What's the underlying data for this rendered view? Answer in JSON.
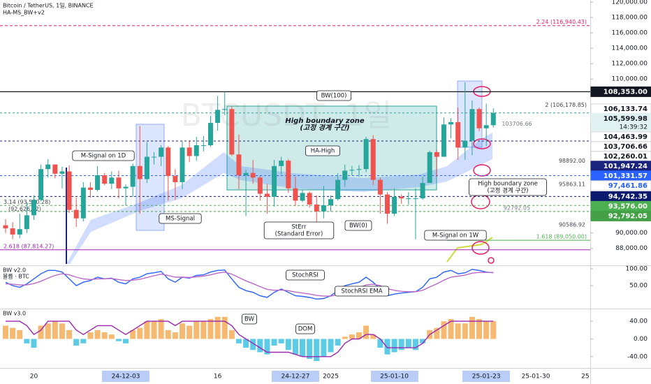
{
  "chart_data": [
    {
      "type": "candlestick",
      "title": "Bitcoin / TetherUS, 1일, BINANCE",
      "subtitle": "HA-MS_BW+v2",
      "watermark": "BTCUSDT, 1일",
      "categories": [
        null,
        null,
        null,
        null,
        "20",
        null,
        null,
        null,
        null,
        null,
        null,
        null,
        null,
        null,
        null,
        null,
        null,
        "24-12-03",
        null,
        null,
        null,
        null,
        null,
        null,
        null,
        null,
        null,
        null,
        null,
        null,
        "16",
        null,
        null,
        null,
        null,
        null,
        null,
        null,
        null,
        null,
        null,
        "24-12-27",
        null,
        null,
        null,
        null,
        "2025",
        null,
        null,
        null,
        null,
        null,
        null,
        null,
        null,
        "25-01-10",
        null,
        null,
        null,
        null,
        null,
        null,
        null,
        null,
        null,
        null,
        null,
        null,
        "25-01-23",
        null,
        null,
        null,
        null,
        null,
        null,
        "25-01-30",
        null,
        null,
        null,
        null,
        null,
        null,
        "25"
      ],
      "open": [
        91000,
        90600,
        89800,
        90500,
        92300,
        94300,
        98300,
        98900,
        97700,
        98000,
        93000,
        91900,
        95900,
        95600,
        97500,
        96400,
        97200,
        95800,
        96000,
        98700,
        97000,
        99900,
        99900,
        101100,
        97400,
        96600,
        101100,
        100000,
        101400,
        101400,
        104300,
        106000,
        106100,
        100200,
        97500,
        97800,
        97200,
        95100,
        94700,
        98700,
        99400,
        95800,
        94200,
        95200,
        93700,
        92800,
        93600,
        94400,
        96900,
        98100,
        98200,
        98300,
        102200,
        96900,
        95000,
        92500,
        94700,
        94500,
        94500,
        94500,
        96500,
        100500,
        99900,
        104100,
        104400,
        101100,
        102000,
        106100,
        103600,
        104000,
        null,
        null,
        null,
        null,
        null,
        null,
        null,
        null,
        null,
        null,
        null,
        null,
        null
      ],
      "high": [
        91800,
        91400,
        92500,
        94000,
        94900,
        98900,
        99600,
        98700,
        98600,
        98800,
        94600,
        96600,
        96600,
        98700,
        97800,
        98000,
        98100,
        96300,
        99000,
        103900,
        101800,
        100500,
        101400,
        101300,
        98300,
        101900,
        101900,
        102500,
        102600,
        105200,
        107800,
        108353,
        106500,
        102800,
        98200,
        99500,
        97400,
        96400,
        99500,
        99900,
        99600,
        97300,
        95600,
        95400,
        94900,
        96100,
        94900,
        97800,
        98900,
        98700,
        98800,
        102500,
        102700,
        97200,
        95300,
        95800,
        95000,
        95300,
        95800,
        97300,
        100700,
        100800,
        105000,
        104900,
        106300,
        109600,
        107200,
        106300,
        106800,
        106200,
        null,
        null,
        null,
        null,
        null,
        null,
        null,
        null,
        null,
        null,
        null,
        null,
        null
      ],
      "low": [
        90000,
        89200,
        89300,
        90000,
        91700,
        94100,
        97200,
        97100,
        95800,
        92600,
        90800,
        91500,
        94600,
        95400,
        96200,
        95700,
        94500,
        93600,
        94700,
        92500,
        96500,
        98900,
        98700,
        94200,
        94300,
        95700,
        99200,
        99400,
        100600,
        101200,
        103300,
        105300,
        100000,
        95700,
        92200,
        96400,
        94200,
        92500,
        93400,
        97600,
        95200,
        93500,
        94000,
        93300,
        91300,
        91900,
        92800,
        94200,
        96000,
        97500,
        97300,
        97900,
        96200,
        92500,
        91200,
        92200,
        93800,
        93700,
        89200,
        94300,
        96500,
        97300,
        99900,
        102300,
        99500,
        99500,
        100100,
        103200,
        101300,
        103700,
        null,
        null,
        null,
        null,
        null,
        null,
        null,
        null,
        null,
        null,
        null,
        null,
        null
      ],
      "close": [
        90600,
        89800,
        90500,
        92300,
        94300,
        98300,
        98900,
        97700,
        98000,
        93000,
        91900,
        95900,
        95600,
        97500,
        96400,
        97200,
        95800,
        96000,
        98700,
        97000,
        99900,
        99900,
        101100,
        97400,
        96600,
        101100,
        100000,
        101400,
        101400,
        104300,
        106000,
        106100,
        100200,
        97500,
        97800,
        97200,
        95100,
        94700,
        98700,
        99400,
        95800,
        94200,
        95200,
        93700,
        92800,
        93600,
        94400,
        96900,
        98100,
        98200,
        98300,
        102200,
        96900,
        95000,
        92500,
        94700,
        94500,
        94500,
        94500,
        96500,
        100500,
        99900,
        104100,
        104400,
        101100,
        102000,
        106100,
        103600,
        104000,
        105599.98,
        null,
        null,
        null,
        null,
        null,
        null,
        null,
        null,
        null,
        null,
        null,
        null,
        null
      ],
      "up_color": "#26a69a",
      "down_color": "#ef5350",
      "ylim": [
        85800,
        120270
      ],
      "yticks": [
        {
          "value": 120000,
          "label": "120,000.00"
        },
        {
          "value": 118000,
          "label": "118,000.00"
        },
        {
          "value": 116000,
          "label": "116,000.00"
        },
        {
          "value": 114000,
          "label": "114,000.00"
        },
        {
          "value": 112000,
          "label": "112,000.00"
        },
        {
          "value": 110000,
          "label": "110,000.00"
        },
        {
          "value": 98000,
          "label": "98,000.00"
        },
        {
          "value": 96000,
          "label": "96,000.00"
        },
        {
          "value": 90000,
          "label": "90,000.00"
        },
        {
          "value": 88000,
          "label": "88,000.00"
        }
      ],
      "price_labels": [
        {
          "value": 108353,
          "label": "108,353.00",
          "bg": "#131722",
          "fg": "#ffffff",
          "line": "#131722"
        },
        {
          "value": 106133.74,
          "label": "106,133.74",
          "bg": "#ffffff",
          "fg": "#131722"
        },
        {
          "value": 105599.98,
          "label": "105,599.98",
          "sublabel": "14:39:32",
          "bg": "#e0f2f1",
          "fg": "#131722",
          "line": "#26a69a"
        },
        {
          "value": 104463.99,
          "label": "104,463.99",
          "bg": "#ffffff",
          "fg": "#131722"
        },
        {
          "value": 103706.66,
          "label": "103,706.66",
          "bg": "#ffffff",
          "fg": "#131722"
        },
        {
          "value": 102260.01,
          "label": "102,260.01",
          "bg": "#ffffff",
          "fg": "#131722"
        },
        {
          "value": 101947.24,
          "label": "101,947.24",
          "bg": "#1a237e",
          "fg": "#ffffff",
          "line": "#1a237e"
        },
        {
          "value": 101331.57,
          "label": "101,331.57",
          "bg": "#2962ff",
          "fg": "#ffffff"
        },
        {
          "value": 97461.86,
          "label": "97,461.86",
          "bg": "#ffffff",
          "fg": "#2962ff",
          "line": "#2962ff"
        },
        {
          "value": 94742.35,
          "label": "94,742.35",
          "bg": "#0d1b6e",
          "fg": "#ffffff",
          "line": "#0d1b6e"
        },
        {
          "value": 93576,
          "label": "93,576.00",
          "bg": "#4caf50",
          "fg": "#ffffff",
          "line": "#4caf50"
        },
        {
          "value": 92792.05,
          "label": "92,792.05",
          "bg": "#43a047",
          "fg": "#ffffff",
          "line": "#43a047"
        }
      ],
      "levels": [
        {
          "value": 116940.43,
          "label": "2.24 (116,940.43)",
          "color": "#e91e63"
        },
        {
          "value": 106178.85,
          "label": "2 (106,178.85)",
          "color": "#434651"
        },
        {
          "value": 103706.66,
          "label": "103706.66",
          "color": "#787b86"
        },
        {
          "value": 98892,
          "label": "98892.00",
          "color": "#434651"
        },
        {
          "value": 95863.11,
          "label": "95863.11",
          "color": "#434651"
        },
        {
          "value": 92792.05,
          "label": "92792.05",
          "color": "#787b86"
        },
        {
          "value": 90586.92,
          "label": "90586.92",
          "color": "#434651"
        },
        {
          "value": 89050,
          "label": "1.618 (89,050.00)",
          "color": "#4caf50"
        },
        {
          "value": 87814.27,
          "label": "2.618 (87,814.27)",
          "color": "#9c27b0"
        },
        {
          "value": 93570.28,
          "label": "3.14 (93,570.28)",
          "color": "#434651"
        },
        {
          "value": 92626.52,
          "label": "(92,626.52)",
          "color": "#434651"
        }
      ],
      "annotations": [
        {
          "lines": [
            "BW(100)"
          ]
        },
        {
          "lines": [
            "High boundary zone",
            "(고정 경계 구간)"
          ]
        },
        {
          "lines": [
            "HA-High"
          ]
        },
        {
          "lines": [
            "M-Signal on 1D"
          ]
        },
        {
          "lines": [
            "MS-Signal"
          ]
        },
        {
          "lines": [
            "StErr",
            "(Standard Error)"
          ]
        },
        {
          "lines": [
            "BW(0)"
          ]
        },
        {
          "lines": [
            "M-Signal on 1W"
          ]
        },
        {
          "lines": [
            "High boundary zone",
            "(고정 경계 구간)"
          ]
        }
      ]
    },
    {
      "type": "line",
      "title": "BW v2.0",
      "subtitle": "볼륨 · BTC",
      "ylim": [
        -16,
        108
      ],
      "yticks": [
        {
          "value": 100,
          "label": "100.00"
        },
        {
          "value": 50,
          "label": "50.00"
        }
      ],
      "series": [
        {
          "color": "#2962ff",
          "values": [
            60,
            50,
            45,
            55,
            70,
            85,
            95,
            95,
            90,
            70,
            50,
            60,
            65,
            75,
            70,
            72,
            60,
            55,
            70,
            75,
            85,
            88,
            92,
            70,
            60,
            75,
            72,
            80,
            82,
            90,
            95,
            96,
            70,
            45,
            35,
            30,
            20,
            15,
            30,
            40,
            30,
            20,
            18,
            15,
            10,
            12,
            20,
            35,
            50,
            55,
            60,
            75,
            60,
            40,
            20,
            25,
            28,
            30,
            32,
            45,
            70,
            75,
            90,
            95,
            85,
            88,
            98,
            95,
            90,
            88,
            null,
            null,
            null,
            null,
            null,
            null,
            null,
            null,
            null,
            null,
            null,
            null,
            null
          ]
        },
        {
          "color": "#ba68c8",
          "values": [
            55,
            54,
            52,
            52,
            56,
            63,
            72,
            80,
            85,
            82,
            75,
            70,
            68,
            70,
            70,
            71,
            68,
            65,
            66,
            69,
            74,
            79,
            84,
            80,
            75,
            75,
            74,
            76,
            78,
            82,
            87,
            90,
            84,
            74,
            64,
            56,
            47,
            39,
            36,
            37,
            35,
            31,
            28,
            25,
            21,
            19,
            19,
            23,
            30,
            37,
            43,
            52,
            54,
            50,
            41,
            36,
            33,
            32,
            32,
            36,
            46,
            55,
            66,
            75,
            78,
            81,
            87,
            89,
            89,
            89,
            null,
            null,
            null,
            null,
            null,
            null,
            null,
            null,
            null,
            null,
            null,
            null,
            null
          ]
        }
      ],
      "annotations": [
        {
          "lines": [
            "StochRSI"
          ]
        },
        {
          "lines": [
            "StochRSI EMA"
          ]
        }
      ]
    },
    {
      "type": "bar",
      "title": "BW v3.0",
      "ylim": [
        -64,
        67
      ],
      "yticks": [
        {
          "value": 40,
          "label": "40.00"
        },
        {
          "value": 0,
          "label": "0.00"
        },
        {
          "value": -40,
          "label": "-40.00"
        }
      ],
      "series": [
        {
          "type": "bar",
          "color": "#f5b971",
          "negative_color": "#5ccbe6",
          "values": [
            30,
            25,
            20,
            -10,
            -20,
            30,
            35,
            40,
            35,
            20,
            -15,
            -10,
            15,
            20,
            15,
            10,
            -5,
            -10,
            20,
            25,
            40,
            40,
            45,
            20,
            15,
            35,
            30,
            40,
            40,
            45,
            50,
            50,
            20,
            -10,
            -20,
            -25,
            -30,
            -35,
            -15,
            -10,
            -25,
            -35,
            -40,
            -45,
            -50,
            -40,
            -30,
            -15,
            5,
            10,
            15,
            30,
            10,
            -20,
            -35,
            -30,
            -25,
            -20,
            -25,
            -10,
            20,
            25,
            40,
            45,
            35,
            35,
            50,
            45,
            40,
            40,
            null,
            null,
            null,
            null,
            null,
            null,
            null,
            null,
            null,
            null,
            null,
            null,
            null
          ]
        },
        {
          "type": "line",
          "color": "#9c27b0",
          "values": [
            40,
            40,
            40,
            30,
            10,
            20,
            40,
            40,
            40,
            40,
            20,
            10,
            20,
            30,
            30,
            30,
            20,
            10,
            20,
            30,
            40,
            40,
            40,
            40,
            30,
            40,
            40,
            40,
            40,
            40,
            40,
            40,
            30,
            10,
            0,
            -10,
            -20,
            -30,
            -30,
            -30,
            -30,
            -35,
            -40,
            -40,
            -40,
            -40,
            -40,
            -30,
            -10,
            0,
            0,
            10,
            10,
            0,
            -20,
            -20,
            -20,
            -20,
            -20,
            -10,
            10,
            20,
            30,
            40,
            40,
            40,
            40,
            40,
            40,
            40,
            null,
            null,
            null,
            null,
            null,
            null,
            null,
            null,
            null,
            null,
            null,
            null,
            null
          ]
        }
      ],
      "annotations": [
        {
          "lines": [
            "BW"
          ]
        },
        {
          "lines": [
            "DOM"
          ]
        }
      ]
    }
  ]
}
